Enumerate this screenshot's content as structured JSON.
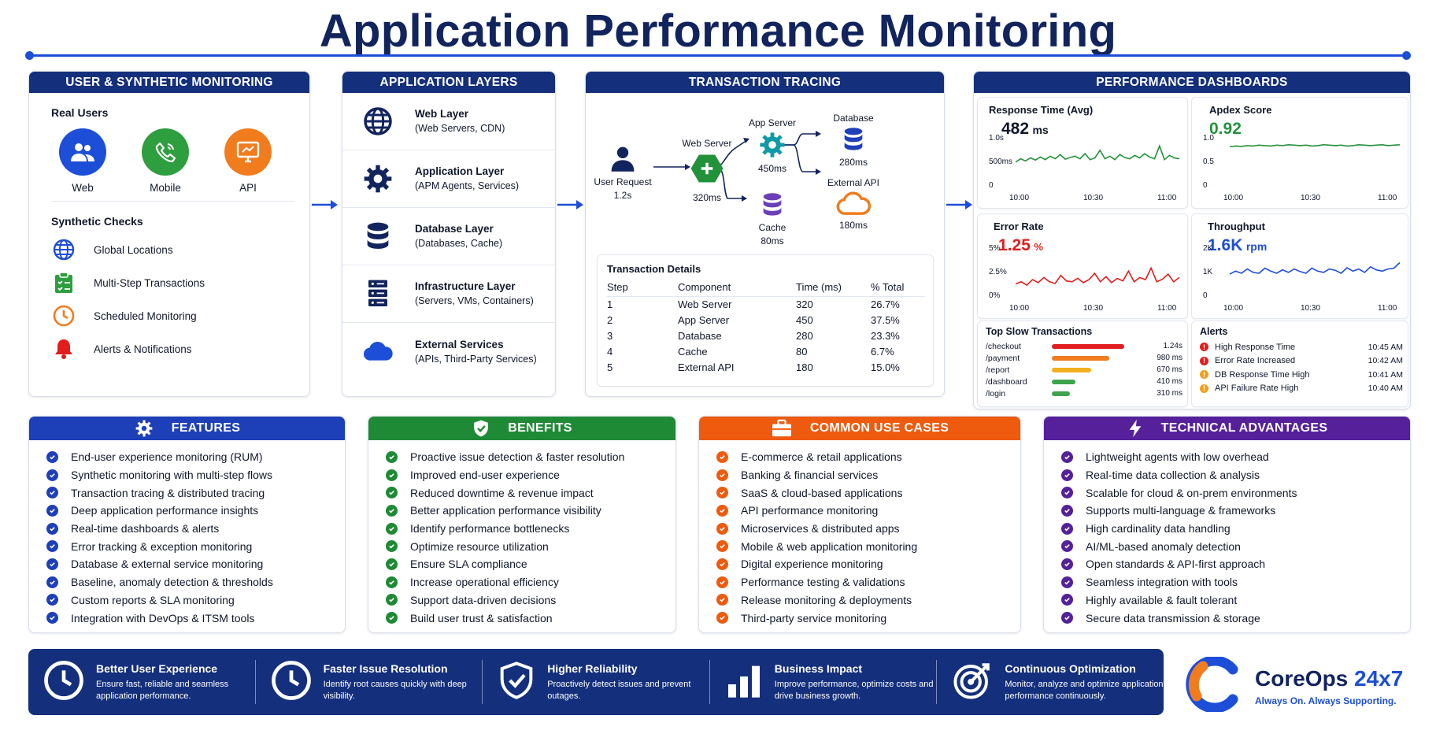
{
  "title": "Application Performance Monitoring",
  "user_monitoring": {
    "header": "USER & SYNTHETIC MONITORING",
    "real_users_label": "Real Users",
    "real_users": [
      {
        "label": "Web",
        "color": "#1d4ed8"
      },
      {
        "label": "Mobile",
        "color": "#2e9e3e"
      },
      {
        "label": "API",
        "color": "#f07c1e"
      }
    ],
    "synthetic_label": "Synthetic Checks",
    "synthetic": [
      "Global Locations",
      "Multi-Step Transactions",
      "Scheduled Monitoring",
      "Alerts & Notifications"
    ]
  },
  "layers": {
    "header": "APPLICATION LAYERS",
    "items": [
      {
        "title": "Web Layer",
        "sub": "(Web Servers, CDN)"
      },
      {
        "title": "Application Layer",
        "sub": "(APM Agents, Services)"
      },
      {
        "title": "Database Layer",
        "sub": "(Databases, Cache)"
      },
      {
        "title": "Infrastructure Layer",
        "sub": "(Servers, VMs, Containers)"
      },
      {
        "title": "External Services",
        "sub": "(APIs, Third-Party Services)"
      }
    ]
  },
  "tracing": {
    "header": "TRANSACTION TRACING",
    "nodes": {
      "user": {
        "label": "User Request",
        "time": "1.2s"
      },
      "web": {
        "label": "Web Server",
        "time": "320ms"
      },
      "app": {
        "label": "App Server",
        "time": "450ms"
      },
      "db": {
        "label": "Database",
        "time": "280ms"
      },
      "cache": {
        "label": "Cache",
        "time": "80ms"
      },
      "ext": {
        "label": "External API",
        "time": "180ms"
      }
    },
    "details_title": "Transaction Details",
    "columns": [
      "Step",
      "Component",
      "Time (ms)",
      "% Total"
    ],
    "rows": [
      [
        "1",
        "Web Server",
        "320",
        "26.7%"
      ],
      [
        "2",
        "App Server",
        "450",
        "37.5%"
      ],
      [
        "3",
        "Database",
        "280",
        "23.3%"
      ],
      [
        "4",
        "Cache",
        "80",
        "6.7%"
      ],
      [
        "5",
        "External API",
        "180",
        "15.0%"
      ]
    ]
  },
  "dashboards": {
    "header": "PERFORMANCE DASHBOARDS",
    "response": {
      "title": "Response Time (Avg)",
      "value": "482",
      "unit": "ms",
      "y_ticks": [
        "1.0s",
        "500ms",
        "0"
      ],
      "x_ticks": [
        "10:00",
        "10:30",
        "11:00"
      ],
      "color": "#22923a"
    },
    "apdex": {
      "title": "Apdex Score",
      "value": "0.92",
      "y_ticks": [
        "1.0",
        "0.5",
        "0"
      ],
      "x_ticks": [
        "10:00",
        "10:30",
        "11:00"
      ],
      "color": "#22923a"
    },
    "error": {
      "title": "Error Rate",
      "value": "1.25",
      "unit": "%",
      "y_ticks": [
        "5%",
        "2.5%",
        "0%"
      ],
      "x_ticks": [
        "10:00",
        "10:30",
        "11:00"
      ],
      "color": "#e11d1d"
    },
    "throughput": {
      "title": "Throughput",
      "value": "1.6K",
      "unit": "rpm",
      "y_ticks": [
        "2K",
        "1K",
        "0"
      ],
      "x_ticks": [
        "10:00",
        "10:30",
        "11:00"
      ],
      "color": "#1d4ed8"
    },
    "slow_title": "Top Slow Transactions",
    "slow": [
      {
        "path": "/checkout",
        "time": "1.24s",
        "value": 1.24,
        "color": "#e11d1d"
      },
      {
        "path": "/payment",
        "time": "980 ms",
        "value": 0.98,
        "color": "#f07c1e"
      },
      {
        "path": "/report",
        "time": "670 ms",
        "value": 0.67,
        "color": "#f2b01e"
      },
      {
        "path": "/dashboard",
        "time": "410 ms",
        "value": 0.41,
        "color": "#3fa34d"
      },
      {
        "path": "/login",
        "time": "310 ms",
        "value": 0.31,
        "color": "#3fa34d"
      }
    ],
    "alerts_title": "Alerts",
    "alerts": [
      {
        "text": "High Response Time",
        "time": "10:45 AM",
        "color": "#e11d1d"
      },
      {
        "text": "Error Rate Increased",
        "time": "10:42 AM",
        "color": "#e11d1d"
      },
      {
        "text": "DB Response Time High",
        "time": "10:41 AM",
        "color": "#f0a01e"
      },
      {
        "text": "API Failure Rate High",
        "time": "10:40 AM",
        "color": "#f0a01e"
      }
    ]
  },
  "features": {
    "header": "FEATURES",
    "color": "#1d3fb8",
    "items": [
      "End-user experience monitoring (RUM)",
      "Synthetic monitoring with multi-step flows",
      "Transaction tracing & distributed tracing",
      "Deep application performance insights",
      "Real-time dashboards & alerts",
      "Error tracking & exception monitoring",
      "Database & external service monitoring",
      "Baseline, anomaly detection & thresholds",
      "Custom reports & SLA monitoring",
      "Integration with DevOps & ITSM tools"
    ]
  },
  "benefits": {
    "header": "BENEFITS",
    "color": "#1f8a35",
    "items": [
      "Proactive issue detection & faster resolution",
      "Improved end-user experience",
      "Reduced downtime & revenue impact",
      "Better application performance visibility",
      "Identify performance bottlenecks",
      "Optimize resource utilization",
      "Ensure SLA compliance",
      "Increase operational efficiency",
      "Support data-driven decisions",
      "Build user trust & satisfaction"
    ]
  },
  "use_cases": {
    "header": "COMMON USE CASES",
    "color": "#ee5a0e",
    "items": [
      "E-commerce & retail applications",
      "Banking & financial services",
      "SaaS & cloud-based applications",
      "API performance monitoring",
      "Microservices & distributed apps",
      "Mobile & web application monitoring",
      "Digital experience monitoring",
      "Performance testing & validations",
      "Release monitoring & deployments",
      "Third-party service monitoring"
    ]
  },
  "technical": {
    "header": "TECHNICAL ADVANTAGES",
    "color": "#55209a",
    "items": [
      "Lightweight agents with low overhead",
      "Real-time data collection & analysis",
      "Scalable for cloud & on-prem environments",
      "Supports multi-language & frameworks",
      "High cardinality data handling",
      "AI/ML-based anomaly detection",
      "Open standards & API-first approach",
      "Seamless integration with tools",
      "Highly available & fault tolerant",
      "Secure data transmission & storage"
    ]
  },
  "banner": [
    {
      "title": "Better User Experience",
      "text": "Ensure fast, reliable and seamless application performance.",
      "icon": "clock-icon"
    },
    {
      "title": "Faster Issue Resolution",
      "text": "Identify root causes quickly with deep visibility.",
      "icon": "clock-icon"
    },
    {
      "title": "Higher Reliability",
      "text": "Proactively detect issues and prevent outages.",
      "icon": "shield-check-icon"
    },
    {
      "title": "Business Impact",
      "text": "Improve performance, optimize costs and drive business growth.",
      "icon": "bar-chart-icon"
    },
    {
      "title": "Continuous Optimization",
      "text": "Monitor, analyze and optimize application performance continuously.",
      "icon": "target-icon"
    }
  ],
  "brand": {
    "name": "CoreOps",
    "suffix": "24x7",
    "tagline": "Always On. Always Supporting."
  }
}
